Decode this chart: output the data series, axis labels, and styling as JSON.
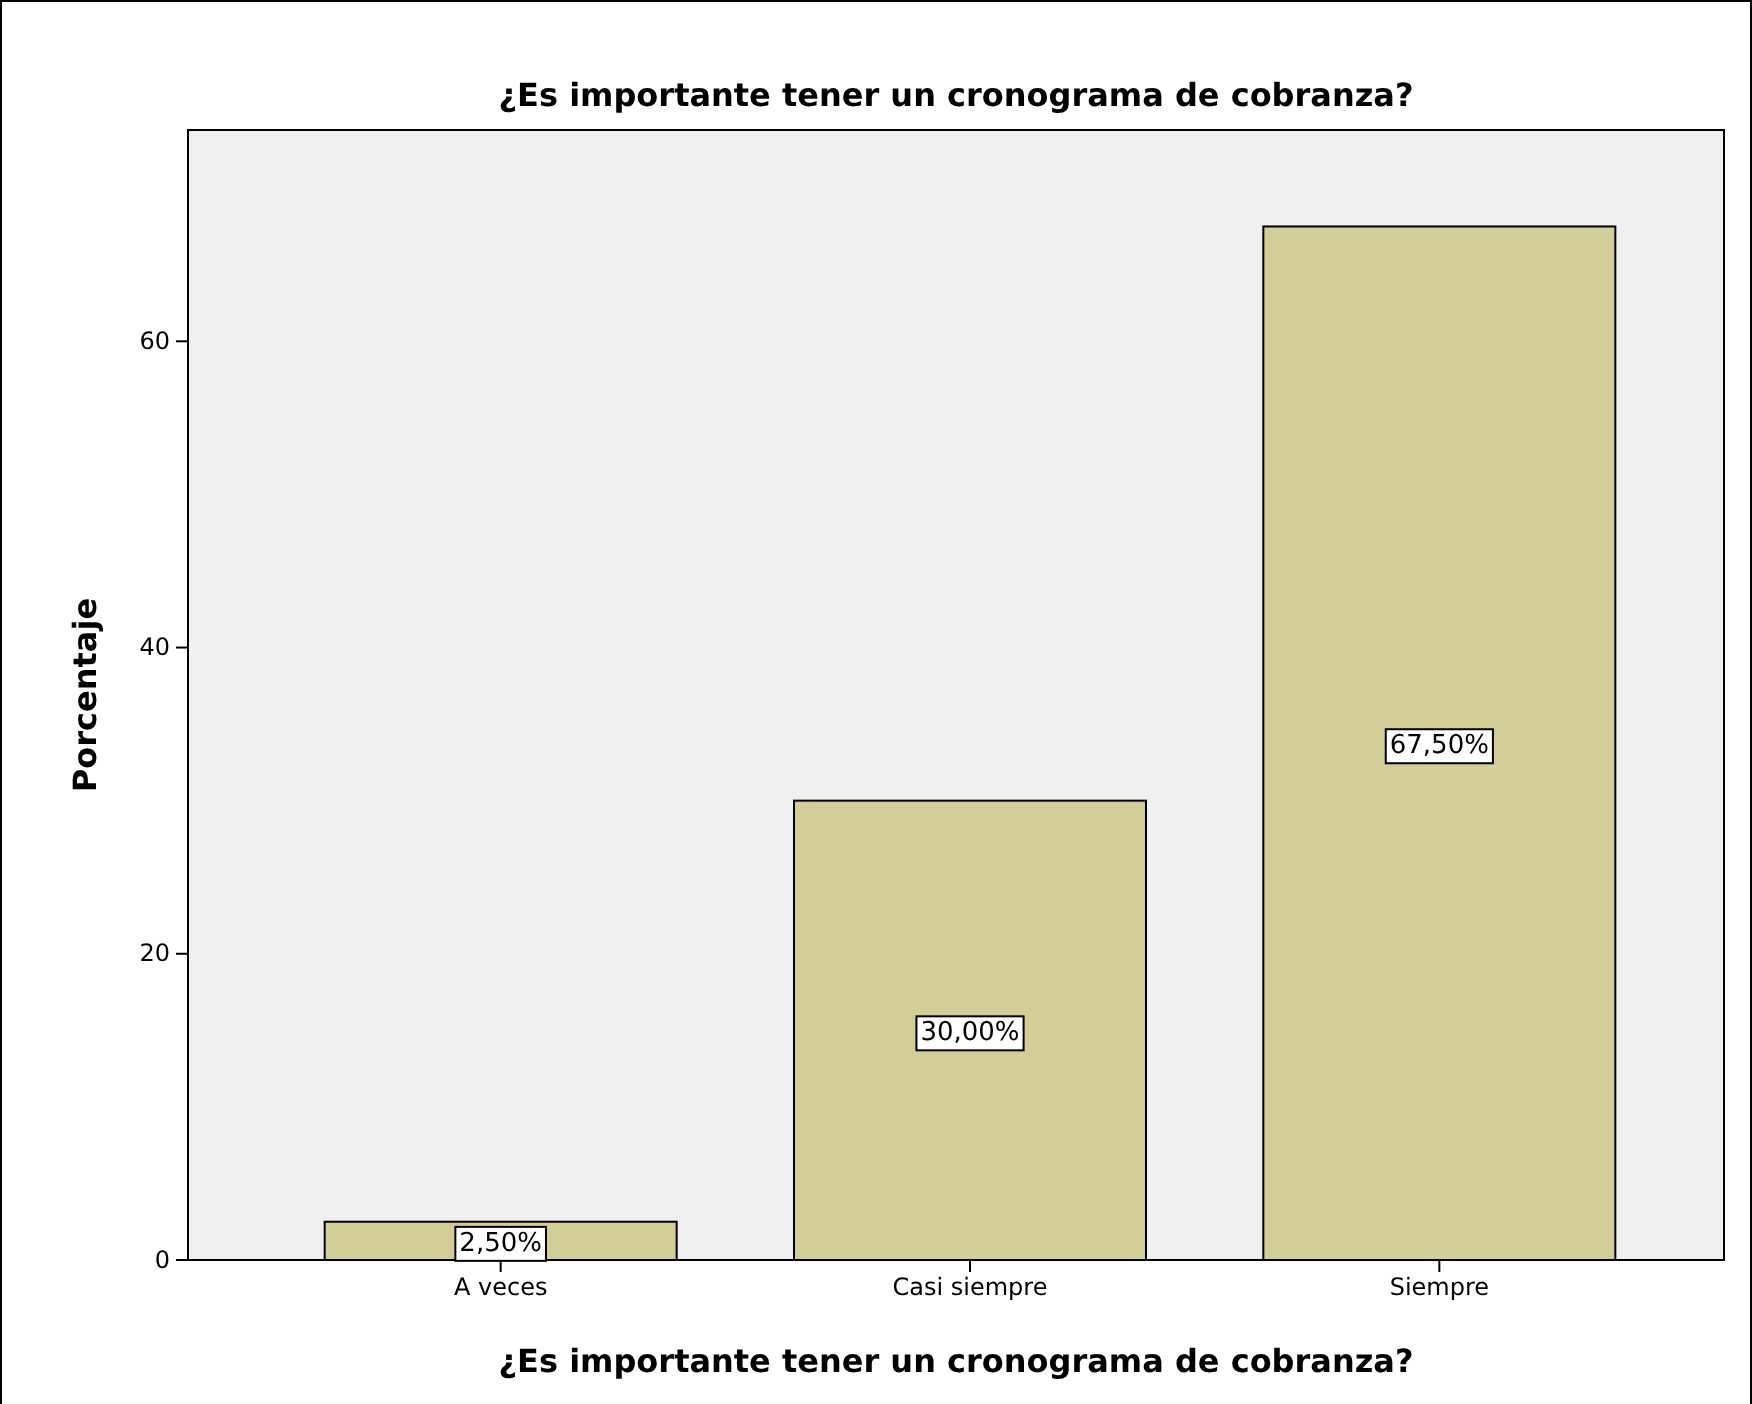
{
  "chart_data": {
    "type": "bar",
    "title": "¿Es importante tener un cronograma de cobranza?",
    "xlabel": "¿Es importante tener un cronograma de cobranza?",
    "ylabel": "Porcentaje",
    "categories": [
      "A veces",
      "Casi siempre",
      "Siempre"
    ],
    "values": [
      2.5,
      30,
      67.5
    ],
    "color": "#d3ce97",
    "value_labels": [
      "2,50%",
      "30,00%",
      "67,50%"
    ],
    "ylim": [
      0,
      73.8
    ],
    "yticks": [
      0,
      20,
      40,
      60
    ],
    "grid": false
  }
}
